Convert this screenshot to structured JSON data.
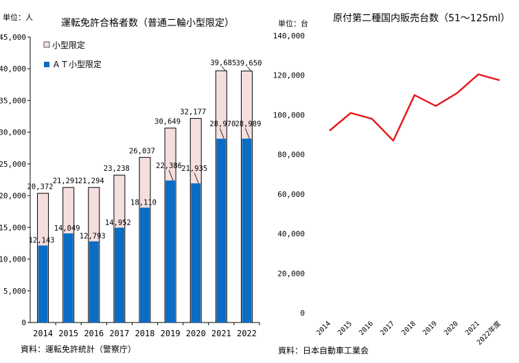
{
  "chart_data": [
    {
      "type": "bar",
      "title": "運転免許合格者数（普通二輪小型限定）",
      "unit_label": "単位：人",
      "source": "資料：運転免許統計（警察庁）",
      "categories": [
        "2014",
        "2015",
        "2016",
        "2017",
        "2018",
        "2019",
        "2020",
        "2021",
        "2022"
      ],
      "series": [
        {
          "name": "小型限定",
          "color": "#f4dede",
          "values": [
            20372,
            21291,
            21294,
            23238,
            26037,
            30649,
            32177,
            39685,
            39650
          ],
          "labels": [
            "20,372",
            "21,291",
            "21,294",
            "23,238",
            "26,037",
            "30,649",
            "32,177",
            "39,685",
            "39,650"
          ]
        },
        {
          "name": "ＡＴ小型限定",
          "color": "#0a6cc4",
          "values": [
            12143,
            14049,
            12793,
            14952,
            18110,
            22386,
            21935,
            28970,
            28989
          ],
          "labels": [
            "12,143",
            "14,049",
            "12,793",
            "14,952",
            "18,110",
            "22,386",
            "21,935",
            "28,970",
            "28,989"
          ]
        }
      ],
      "ylim": [
        0,
        45000
      ],
      "yticks": [
        0,
        5000,
        10000,
        15000,
        20000,
        25000,
        30000,
        35000,
        40000,
        45000
      ],
      "ytick_labels": [
        "0",
        "5,000",
        "10,000",
        "15,000",
        "20,000",
        "25,000",
        "30,000",
        "35,000",
        "40,000",
        "45,000"
      ],
      "legend": "top-left",
      "grid": false
    },
    {
      "type": "line",
      "title": "原付第二種国内販売台数（51～125ml）",
      "unit_label": "単位：台",
      "source": "資料：日本自動車工業会",
      "categories": [
        "2014",
        "2015",
        "2016",
        "2017",
        "2018",
        "2019",
        "2020",
        "2021",
        "2022年度"
      ],
      "series": [
        {
          "color": "#e41a1c",
          "values": [
            92000,
            101000,
            98000,
            87000,
            110000,
            104500,
            111000,
            120500,
            117500
          ]
        }
      ],
      "ylim": [
        0,
        140000
      ],
      "yticks": [
        0,
        20000,
        40000,
        60000,
        80000,
        100000,
        120000,
        140000
      ],
      "ytick_labels": [
        "0",
        "20,000",
        "40,000",
        "60,000",
        "80,000",
        "100,000",
        "120,000",
        "140,000"
      ],
      "grid": false
    }
  ]
}
